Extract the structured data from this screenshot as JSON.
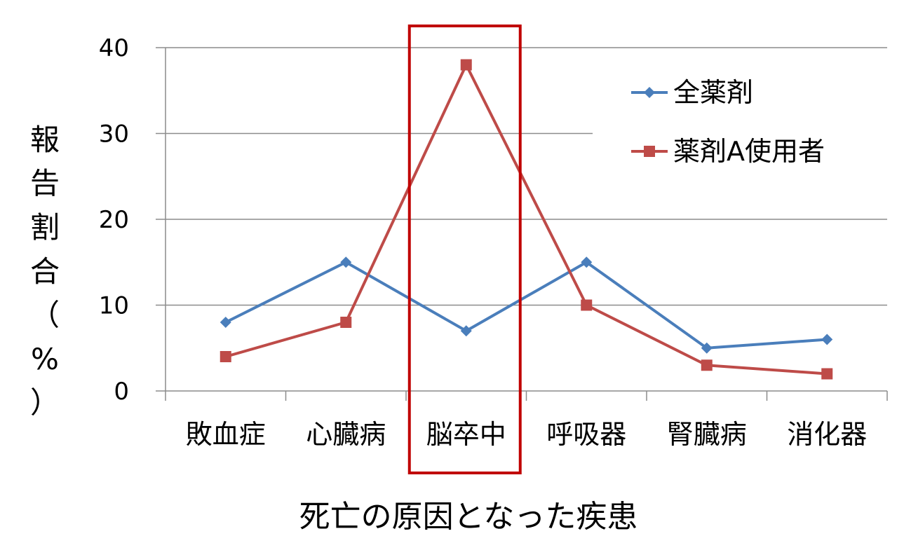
{
  "chart_data": {
    "type": "line",
    "title": "",
    "xlabel": "死亡の原因となった疾患",
    "ylabel_chars": [
      "報",
      "告",
      "割",
      "合",
      "（",
      "%",
      "）"
    ],
    "categories": [
      "敗血症",
      "心臓病",
      "脳卒中",
      "呼吸器",
      "腎臓病",
      "消化器"
    ],
    "yticks": [
      0,
      10,
      20,
      30,
      40
    ],
    "ylim": [
      0,
      40
    ],
    "grid": true,
    "legend_position": "top-right",
    "highlight_category": "脳卒中",
    "series": [
      {
        "name": "全薬剤",
        "color": "#4a7ebb",
        "marker": "diamond",
        "values": [
          8,
          15,
          7,
          15,
          5,
          6
        ]
      },
      {
        "name": "薬剤A使用者",
        "color": "#be4b48",
        "marker": "square",
        "values": [
          4,
          8,
          38,
          10,
          3,
          2
        ]
      }
    ],
    "highlight_color": "#c00000"
  }
}
